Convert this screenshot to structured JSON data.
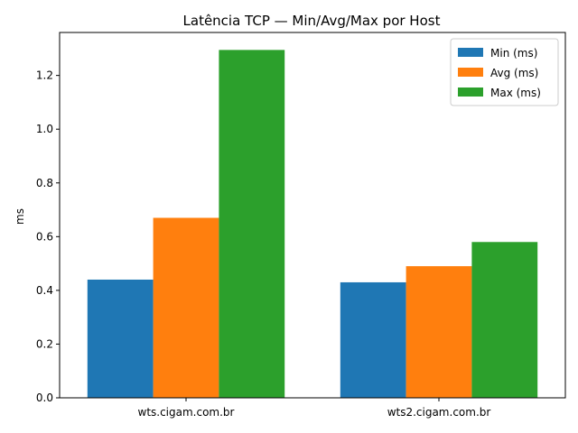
{
  "chart_data": {
    "type": "bar",
    "title": "Latência TCP — Min/Avg/Max por Host",
    "xlabel": "",
    "ylabel": "ms",
    "categories": [
      "wts.cigam.com.br",
      "wts2.cigam.com.br"
    ],
    "series": [
      {
        "name": "Min (ms)",
        "values": [
          0.44,
          0.43
        ],
        "color": "#1f77b4"
      },
      {
        "name": "Avg (ms)",
        "values": [
          0.67,
          0.49
        ],
        "color": "#ff7f0e"
      },
      {
        "name": "Max (ms)",
        "values": [
          1.295,
          0.58
        ],
        "color": "#2ca02c"
      }
    ],
    "ylim": [
      0,
      1.36
    ],
    "yticks": [
      "0.0",
      "0.2",
      "0.4",
      "0.6",
      "0.8",
      "1.0",
      "1.2"
    ],
    "grid": false,
    "legend_position": "top-right"
  }
}
